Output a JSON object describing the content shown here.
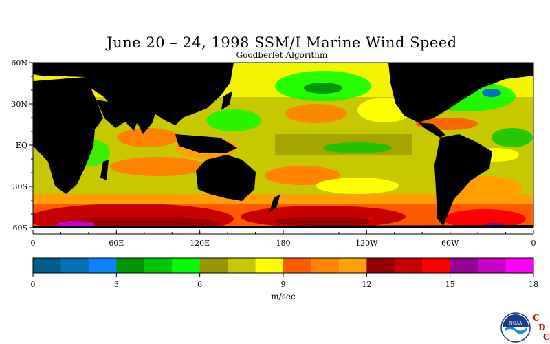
{
  "title": "June 20 – 24, 1998 SSM/I Marine Wind Speed",
  "subtitle": "Goodberlet Algorithm",
  "map": {
    "lat_labels": [
      "60N",
      "30N",
      "EQ",
      "30S",
      "60S"
    ],
    "lon_labels": [
      "0",
      "60E",
      "120E",
      "180",
      "120W",
      "60W",
      "0"
    ],
    "land_color": "#000000"
  },
  "colorbar": {
    "colors": [
      "#005c8a",
      "#0070b8",
      "#0a82ff",
      "#009600",
      "#00c800",
      "#00ff00",
      "#969600",
      "#c8c800",
      "#ffff00",
      "#ff5a00",
      "#ff8200",
      "#ffa000",
      "#960000",
      "#c80000",
      "#ff0000",
      "#960096",
      "#c800c8",
      "#ff00ff"
    ],
    "tick_labels": [
      "0",
      "3",
      "6",
      "9",
      "12",
      "15",
      "18"
    ],
    "unit": "m/sec"
  },
  "logo": {
    "emblem_text": "NOAA",
    "letters": [
      "C",
      "D",
      "C"
    ],
    "letter_color": "#d00000"
  }
}
